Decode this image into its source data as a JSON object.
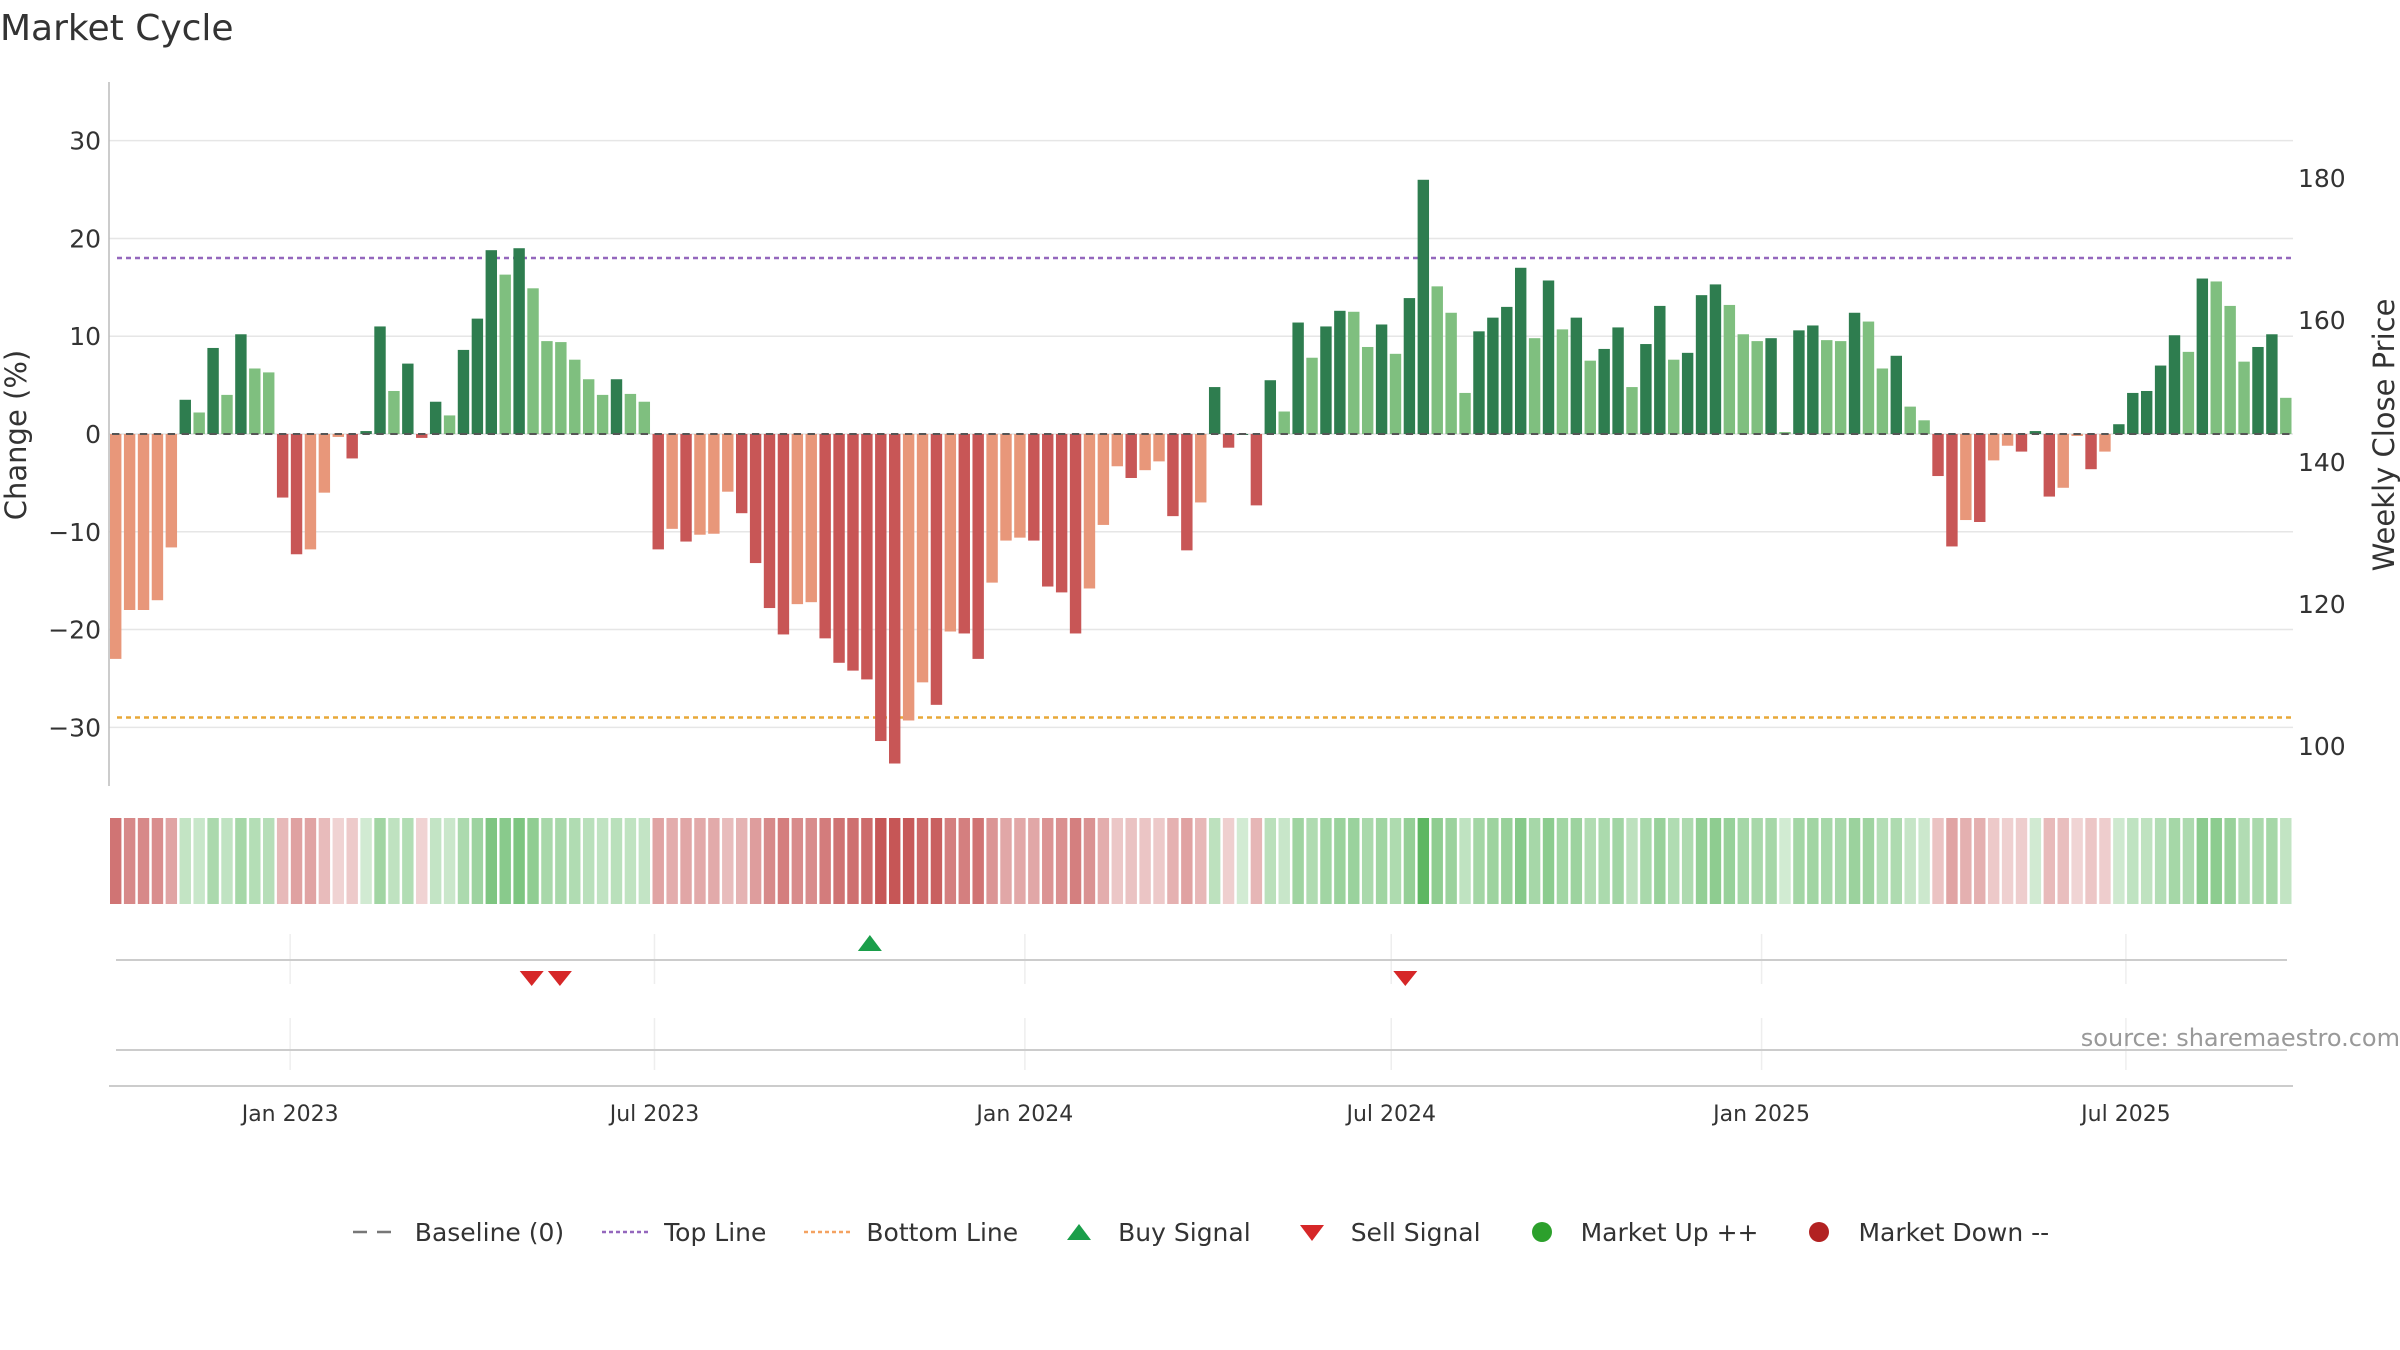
{
  "title": "Market Cycle",
  "source": "source: sharemaestro.com",
  "legend": [
    {
      "key": "baseline",
      "label": "Baseline (0)",
      "color": "#777777"
    },
    {
      "key": "top",
      "label": "Top Line",
      "color": "#9467bd"
    },
    {
      "key": "bottom",
      "label": "Bottom Line",
      "color": "#f4a261"
    },
    {
      "key": "buy",
      "label": "Buy Signal",
      "color": "#1a9e4a"
    },
    {
      "key": "sell",
      "label": "Sell Signal",
      "color": "#d62728"
    },
    {
      "key": "up",
      "label": "Market Up ++",
      "color": "#2ca02c"
    },
    {
      "key": "down",
      "label": "Market Down --",
      "color": "#b22222"
    }
  ],
  "colors": {
    "pos_dark": "#2e7d4f",
    "pos_light": "#7fbf7f",
    "neg_dark": "#c85656",
    "neg_light": "#e8977a",
    "grid": "#e6e6e6",
    "axis": "#bbbbbb"
  },
  "chart_data": {
    "type": "bar",
    "ylabel": "Change (%)",
    "y2label": "Weekly Close Price",
    "ylim": [
      -36,
      36
    ],
    "yticks": [
      30,
      20,
      10,
      0,
      -10,
      -20,
      -30
    ],
    "ytick_labels": [
      "30",
      "20",
      "10",
      "0",
      "−10",
      "−20",
      "−30"
    ],
    "y2ticks": [
      180,
      160,
      140,
      120,
      100
    ],
    "top_line": 18,
    "bottom_line": -29,
    "baseline": 0,
    "xtick_labels": [
      "Jan 2023",
      "Jul 2023",
      "Jan 2024",
      "Jul 2024",
      "Jan 2025",
      "Jul 2025"
    ],
    "x_start": "2022-10-03",
    "x_end": "2025-09-22",
    "xtick_dates": [
      "2023-01-01",
      "2023-07-01",
      "2024-01-01",
      "2024-07-01",
      "2025-01-01",
      "2025-07-01"
    ],
    "values": [
      -23,
      -18,
      -18,
      -17,
      -11.6,
      3.5,
      2.2,
      8.8,
      4,
      10.2,
      6.7,
      6.3,
      -6.5,
      -12.3,
      -11.8,
      -6,
      -0.3,
      -2.5,
      0.3,
      11,
      4.4,
      7.2,
      -0.4,
      3.3,
      1.9,
      8.6,
      11.8,
      18.8,
      16.3,
      19,
      14.9,
      9.5,
      9.4,
      7.6,
      5.6,
      4,
      5.6,
      4.1,
      3.3,
      -11.8,
      -9.7,
      -11,
      -10.3,
      -10.2,
      -5.9,
      -8.1,
      -13.2,
      -17.8,
      -20.5,
      -17.4,
      -17.2,
      -20.9,
      -23.4,
      -24.2,
      -25.1,
      -31.4,
      -33.7,
      -29.3,
      -25.4,
      -27.7,
      -20.2,
      -20.4,
      -23,
      -15.2,
      -10.9,
      -10.6,
      -10.9,
      -15.6,
      -16.2,
      -20.4,
      -15.8,
      -9.3,
      -3.3,
      -4.5,
      -3.7,
      -2.8,
      -8.4,
      -11.9,
      -7,
      4.8,
      -1.4,
      0,
      -7.3,
      5.5,
      2.3,
      11.4,
      7.8,
      11,
      12.6,
      12.5,
      8.9,
      11.2,
      8.2,
      13.9,
      26,
      15.1,
      12.4,
      4.2,
      10.5,
      11.9,
      13,
      17,
      9.8,
      15.7,
      10.7,
      11.9,
      7.5,
      8.7,
      10.9,
      4.8,
      9.2,
      13.1,
      7.6,
      8.3,
      14.2,
      15.3,
      13.2,
      10.2,
      9.5,
      9.8,
      0.2,
      10.6,
      11.1,
      9.6,
      9.5,
      12.4,
      11.5,
      6.7,
      8,
      2.8,
      1.4,
      -4.3,
      -11.5,
      -8.8,
      -9,
      -2.7,
      -1.2,
      -1.8,
      0.3,
      -6.4,
      -5.5,
      -0.2,
      -3.6,
      -1.8,
      1,
      4.2,
      4.4,
      7,
      10.1,
      8.4,
      15.9,
      15.6,
      13.1,
      7.4,
      8.9,
      10.2,
      3.7
    ],
    "signals": [
      {
        "type": "sell",
        "date": "2023-05-01"
      },
      {
        "type": "sell",
        "date": "2023-05-15"
      },
      {
        "type": "buy",
        "date": "2023-10-16"
      },
      {
        "type": "sell",
        "date": "2024-07-08"
      }
    ]
  }
}
